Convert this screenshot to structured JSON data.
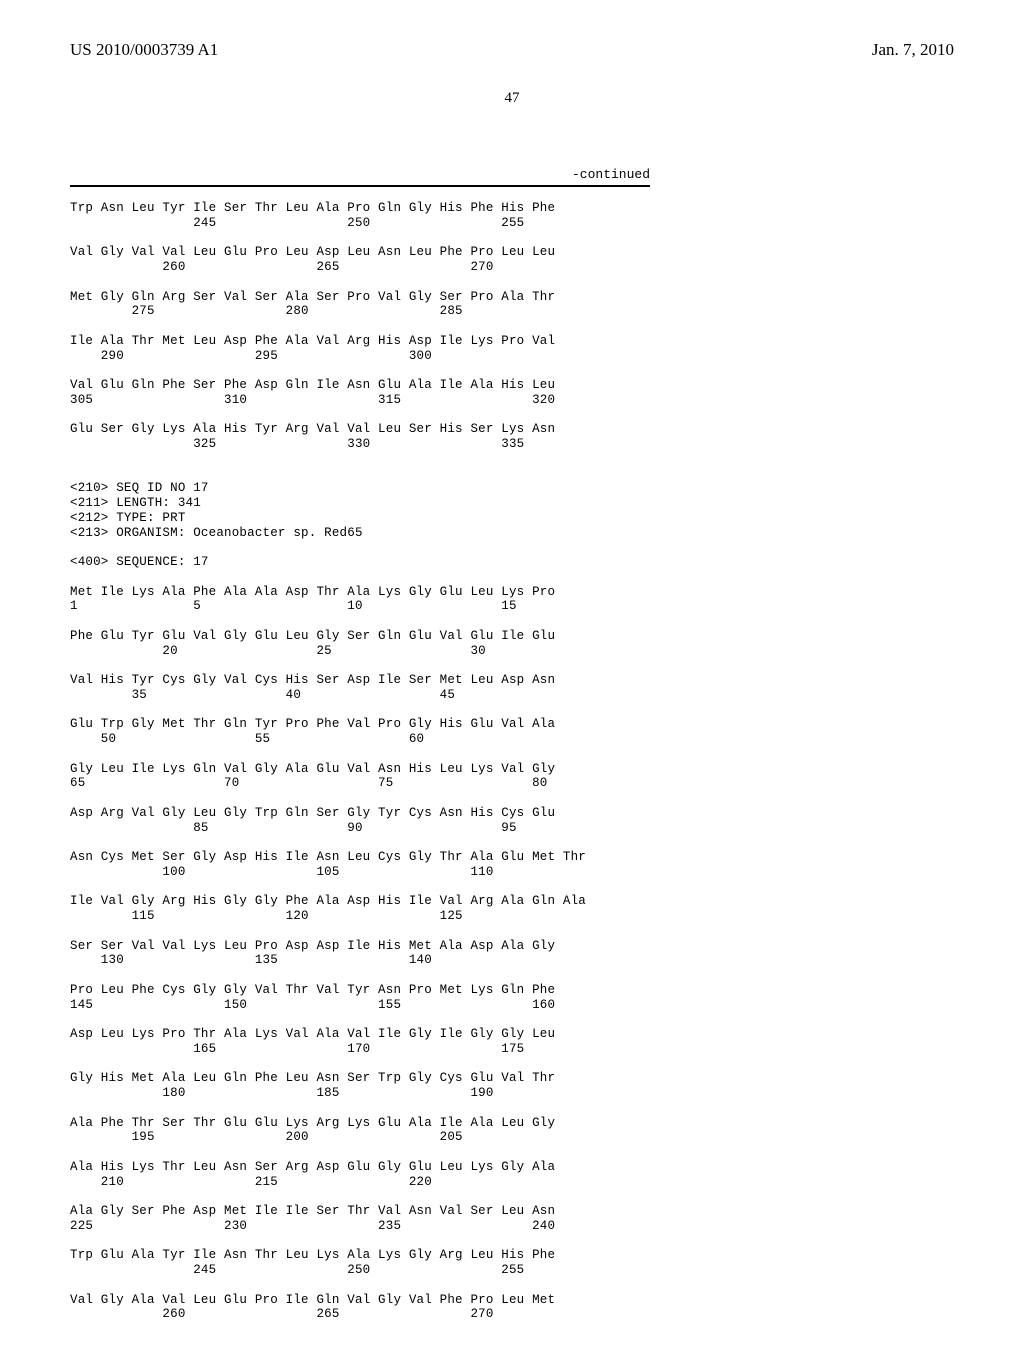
{
  "header": {
    "left": "US 2010/0003739 A1",
    "right": "Jan. 7, 2010"
  },
  "page_number": "47",
  "continued_label": "-continued",
  "sequence_text": "Trp Asn Leu Tyr Ile Ser Thr Leu Ala Pro Gln Gly His Phe His Phe\n                245                 250                 255\n\nVal Gly Val Val Leu Glu Pro Leu Asp Leu Asn Leu Phe Pro Leu Leu\n            260                 265                 270\n\nMet Gly Gln Arg Ser Val Ser Ala Ser Pro Val Gly Ser Pro Ala Thr\n        275                 280                 285\n\nIle Ala Thr Met Leu Asp Phe Ala Val Arg His Asp Ile Lys Pro Val\n    290                 295                 300\n\nVal Glu Gln Phe Ser Phe Asp Gln Ile Asn Glu Ala Ile Ala His Leu\n305                 310                 315                 320\n\nGlu Ser Gly Lys Ala His Tyr Arg Val Val Leu Ser His Ser Lys Asn\n                325                 330                 335\n\n\n<210> SEQ ID NO 17\n<211> LENGTH: 341\n<212> TYPE: PRT\n<213> ORGANISM: Oceanobacter sp. Red65\n\n<400> SEQUENCE: 17\n\nMet Ile Lys Ala Phe Ala Ala Asp Thr Ala Lys Gly Glu Leu Lys Pro\n1               5                   10                  15\n\nPhe Glu Tyr Glu Val Gly Glu Leu Gly Ser Gln Glu Val Glu Ile Glu\n            20                  25                  30\n\nVal His Tyr Cys Gly Val Cys His Ser Asp Ile Ser Met Leu Asp Asn\n        35                  40                  45\n\nGlu Trp Gly Met Thr Gln Tyr Pro Phe Val Pro Gly His Glu Val Ala\n    50                  55                  60\n\nGly Leu Ile Lys Gln Val Gly Ala Glu Val Asn His Leu Lys Val Gly\n65                  70                  75                  80\n\nAsp Arg Val Gly Leu Gly Trp Gln Ser Gly Tyr Cys Asn His Cys Glu\n                85                  90                  95\n\nAsn Cys Met Ser Gly Asp His Ile Asn Leu Cys Gly Thr Ala Glu Met Thr\n            100                 105                 110\n\nIle Val Gly Arg His Gly Gly Phe Ala Asp His Ile Val Arg Ala Gln Ala\n        115                 120                 125\n\nSer Ser Val Val Lys Leu Pro Asp Asp Ile His Met Ala Asp Ala Gly\n    130                 135                 140\n\nPro Leu Phe Cys Gly Gly Val Thr Val Tyr Asn Pro Met Lys Gln Phe\n145                 150                 155                 160\n\nAsp Leu Lys Pro Thr Ala Lys Val Ala Val Ile Gly Ile Gly Gly Leu\n                165                 170                 175\n\nGly His Met Ala Leu Gln Phe Leu Asn Ser Trp Gly Cys Glu Val Thr\n            180                 185                 190\n\nAla Phe Thr Ser Thr Glu Glu Lys Arg Lys Glu Ala Ile Ala Leu Gly\n        195                 200                 205\n\nAla His Lys Thr Leu Asn Ser Arg Asp Glu Gly Glu Leu Lys Gly Ala\n    210                 215                 220\n\nAla Gly Ser Phe Asp Met Ile Ile Ser Thr Val Asn Val Ser Leu Asn\n225                 230                 235                 240\n\nTrp Glu Ala Tyr Ile Asn Thr Leu Lys Ala Lys Gly Arg Leu His Phe\n                245                 250                 255\n\nVal Gly Ala Val Leu Glu Pro Ile Gln Val Gly Val Phe Pro Leu Met\n            260                 265                 270"
}
